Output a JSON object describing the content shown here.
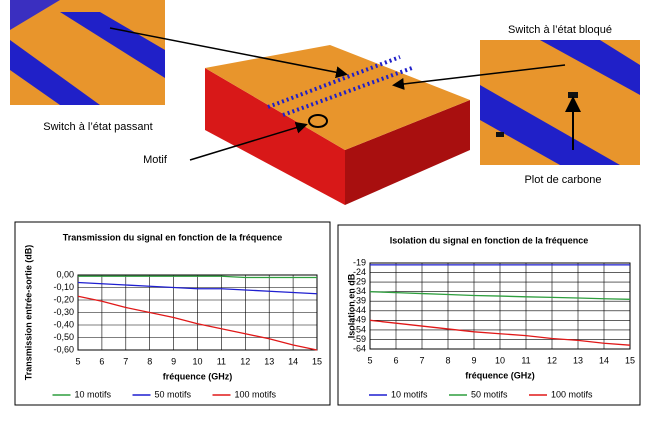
{
  "labels": {
    "switch_blocked": "Switch à l’état bloqué",
    "switch_passing": "Switch à l’état passant",
    "motif": "Motif",
    "carbon": "Plot de carbone"
  },
  "chart_data": [
    {
      "type": "line",
      "title": "Transmission du signal en fonction de la fréquence",
      "x_label": "fréquence (GHz)",
      "y_label": "Transmission entrée-sortie (dB)",
      "x": [
        5,
        6,
        7,
        8,
        9,
        10,
        11,
        12,
        13,
        14,
        15
      ],
      "series": [
        {
          "name": "10 motifs",
          "color": "#2e9e3e",
          "values": [
            -0.01,
            -0.01,
            -0.01,
            -0.01,
            -0.01,
            -0.01,
            -0.01,
            -0.02,
            -0.02,
            -0.02,
            -0.02
          ]
        },
        {
          "name": "50 motifs",
          "color": "#1f1fd0",
          "values": [
            -0.06,
            -0.07,
            -0.08,
            -0.09,
            -0.1,
            -0.11,
            -0.11,
            -0.12,
            -0.13,
            -0.14,
            -0.15
          ]
        },
        {
          "name": "100 motifs",
          "color": "#e01818",
          "values": [
            -0.17,
            -0.21,
            -0.26,
            -0.3,
            -0.34,
            -0.39,
            -0.43,
            -0.47,
            -0.51,
            -0.56,
            -0.6
          ]
        }
      ],
      "xlim": [
        5,
        15
      ],
      "xticks": [
        5,
        6,
        7,
        8,
        9,
        10,
        11,
        12,
        13,
        14,
        15
      ],
      "ylim": [
        -0.6,
        0
      ],
      "yticks": [
        {
          "value": 0,
          "label": "0,00"
        },
        {
          "value": -0.1,
          "label": "-0,10"
        },
        {
          "value": -0.2,
          "label": "-0,20"
        },
        {
          "value": -0.3,
          "label": "-0,30"
        },
        {
          "value": -0.4,
          "label": "-0,40"
        },
        {
          "value": -0.5,
          "label": "-0,50"
        },
        {
          "value": -0.6,
          "label": "-0,60"
        }
      ],
      "grid": true
    },
    {
      "type": "line",
      "title": "Isolation du signal en fonction de la fréquence",
      "x_label": "fréquence (GHz)",
      "y_label": "Isolation en dB",
      "x": [
        5,
        6,
        7,
        8,
        9,
        10,
        11,
        12,
        13,
        14,
        15
      ],
      "series": [
        {
          "name": "10 motifs",
          "color": "#1f1fd0",
          "values": [
            -20,
            -20,
            -20,
            -20,
            -20,
            -20,
            -20,
            -20,
            -20,
            -20,
            -20
          ]
        },
        {
          "name": "50 motifs",
          "color": "#2e9e3e",
          "values": [
            -34,
            -34.5,
            -35,
            -35.5,
            -36,
            -36.3,
            -36.7,
            -37,
            -37.3,
            -37.7,
            -38
          ]
        },
        {
          "name": "100 motifs",
          "color": "#e01818",
          "values": [
            -49,
            -50.5,
            -52,
            -53.5,
            -55,
            -56,
            -57,
            -58.5,
            -59.5,
            -61,
            -62
          ]
        }
      ],
      "xlim": [
        5,
        15
      ],
      "xticks": [
        5,
        6,
        7,
        8,
        9,
        10,
        11,
        12,
        13,
        14,
        15
      ],
      "ylim": [
        -64,
        -19
      ],
      "yticks": [
        -19,
        -24,
        -29,
        -34,
        -39,
        -44,
        -49,
        -54,
        -59,
        -64
      ],
      "grid": true
    }
  ]
}
